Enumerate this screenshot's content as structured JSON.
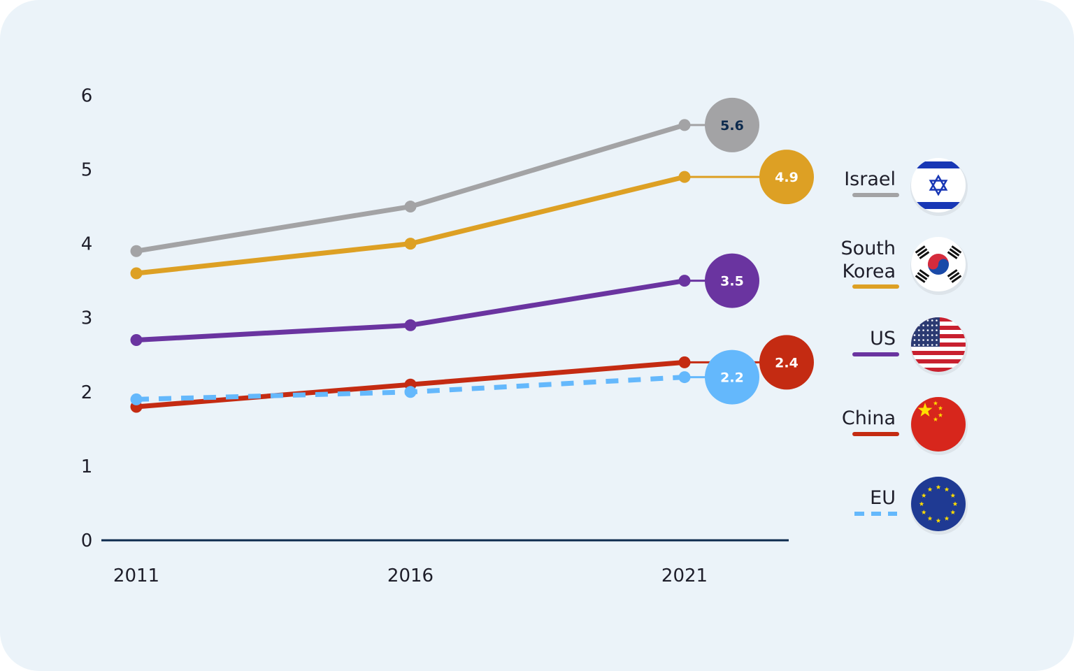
{
  "chart_data": {
    "type": "line",
    "x": [
      "2011",
      "2016",
      "2021"
    ],
    "ylim": [
      0,
      6
    ],
    "yticks": [
      "0",
      "1",
      "2",
      "3",
      "4",
      "5",
      "6"
    ],
    "grid": false,
    "legend_position": "right",
    "series": [
      {
        "name": "Israel",
        "values": [
          3.9,
          4.5,
          5.6
        ],
        "end_label": "5.6",
        "color": "#a3a3a5",
        "label_color": "#0d2b4e",
        "dashed": false,
        "flag": "israel-flag-icon"
      },
      {
        "name": "South Korea",
        "values": [
          3.6,
          4.0,
          4.9
        ],
        "end_label": "4.9",
        "color": "#dda024",
        "label_color": "#ffffff",
        "dashed": false,
        "flag": "south-korea-flag-icon"
      },
      {
        "name": "US",
        "values": [
          2.7,
          2.9,
          3.5
        ],
        "end_label": "3.5",
        "color": "#6a34a0",
        "label_color": "#ffffff",
        "dashed": false,
        "flag": "us-flag-icon"
      },
      {
        "name": "China",
        "values": [
          1.8,
          2.1,
          2.4
        ],
        "end_label": "2.4",
        "color": "#c42b12",
        "label_color": "#ffffff",
        "dashed": false,
        "flag": "china-flag-icon"
      },
      {
        "name": "EU",
        "values": [
          1.9,
          2.0,
          2.2
        ],
        "end_label": "2.2",
        "color": "#64b8fc",
        "label_color": "#ffffff",
        "dashed": true,
        "flag": "eu-flag-icon"
      }
    ]
  }
}
